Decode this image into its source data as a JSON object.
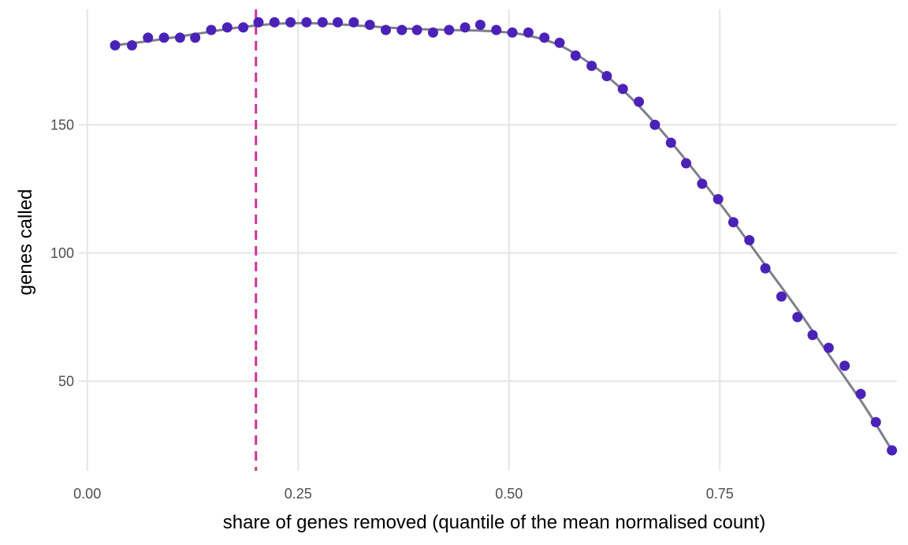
{
  "chart_data": {
    "type": "scatter",
    "xlabel": "share of genes removed (quantile of the mean normalised count)",
    "ylabel": "genes called",
    "xlim": [
      -0.01,
      0.96
    ],
    "ylim": [
      15,
      195
    ],
    "x_ticks": [
      0.0,
      0.25,
      0.5,
      0.75
    ],
    "x_tick_labels": [
      "0.00",
      "0.25",
      "0.50",
      "0.75"
    ],
    "y_ticks": [
      50,
      100,
      150
    ],
    "y_tick_labels": [
      "50",
      "100",
      "150"
    ],
    "grid": true,
    "legend": "none",
    "threshold_x": 0.2,
    "colors": {
      "points": "#4b22b8",
      "fit": "#7f7f8c",
      "threshold": "#cc3399",
      "grid": "#e5e5e5"
    },
    "series": [
      {
        "x": [
          0.033,
          0.053,
          0.072,
          0.091,
          0.11,
          0.128,
          0.147,
          0.166,
          0.185,
          0.203,
          0.222,
          0.241,
          0.26,
          0.279,
          0.297,
          0.316,
          0.335,
          0.354,
          0.373,
          0.391,
          0.41,
          0.429,
          0.448,
          0.466,
          0.485,
          0.504,
          0.523,
          0.542,
          0.56,
          0.579,
          0.598,
          0.616,
          0.635,
          0.654,
          0.673,
          0.692,
          0.71,
          0.729,
          0.748,
          0.766,
          0.785,
          0.804,
          0.823,
          0.842,
          0.86,
          0.879,
          0.898,
          0.917,
          0.935,
          0.954
        ],
        "values": [
          181,
          181,
          184,
          184,
          184,
          184,
          187,
          188,
          188,
          190,
          190,
          190,
          190,
          190,
          190,
          190,
          189,
          187,
          187,
          187,
          186,
          187,
          188,
          189,
          187,
          186,
          186,
          184,
          182,
          177,
          173,
          169,
          164,
          159,
          150,
          143,
          135,
          127,
          121,
          112,
          105,
          94,
          83,
          75,
          68,
          63,
          56,
          45,
          34,
          23
        ]
      }
    ],
    "fit": {
      "x": [
        0.033,
        0.08,
        0.13,
        0.18,
        0.23,
        0.28,
        0.33,
        0.38,
        0.43,
        0.48,
        0.52,
        0.56,
        0.6,
        0.64,
        0.68,
        0.72,
        0.76,
        0.8,
        0.84,
        0.88,
        0.92,
        0.954
      ],
      "values": [
        181,
        183,
        185.5,
        188,
        189.5,
        189.5,
        188.5,
        187.5,
        187,
        186.5,
        185,
        181,
        173,
        162,
        148,
        132,
        115,
        97,
        79,
        60,
        41,
        23
      ]
    }
  }
}
